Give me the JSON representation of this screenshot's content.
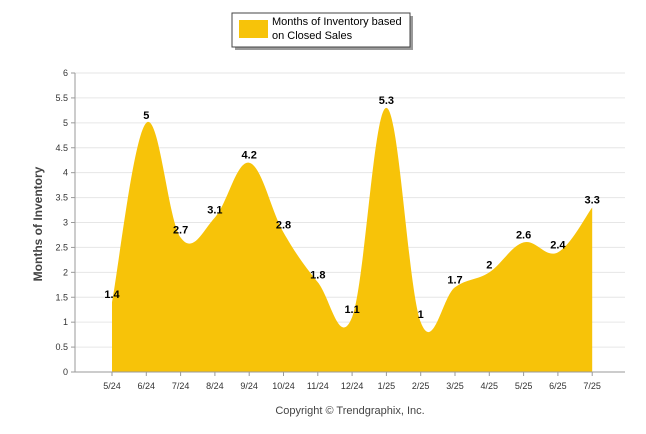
{
  "chart_data": {
    "type": "area",
    "legend": {
      "entries": [
        "Months of Inventory based",
        "on Closed Sales"
      ],
      "placement": "top-center"
    },
    "ylabel": "Months of Inventory",
    "xlabel": "",
    "title": "",
    "ylim": [
      0,
      6
    ],
    "y_ticks": [
      "0",
      "0.5",
      "1",
      "1.5",
      "2",
      "2.5",
      "3",
      "3.5",
      "4",
      "4.5",
      "5",
      "5.5",
      "6"
    ],
    "grid": true,
    "categories": [
      "5/24",
      "6/24",
      "7/24",
      "8/24",
      "9/24",
      "10/24",
      "11/24",
      "12/24",
      "1/25",
      "2/25",
      "3/25",
      "4/25",
      "5/25",
      "6/25",
      "7/25"
    ],
    "values": [
      1.4,
      5,
      2.7,
      3.1,
      4.2,
      2.8,
      1.8,
      1.1,
      5.3,
      1,
      1.7,
      2,
      2.6,
      2.4,
      3.3
    ],
    "data_labels": [
      "1.4",
      "5",
      "2.7",
      "3.1",
      "4.2",
      "2.8",
      "1.8",
      "1.1",
      "5.3",
      "1",
      "1.7",
      "2",
      "2.6",
      "2.4",
      "3.3"
    ],
    "series_color": "#f7c309",
    "footer": "Copyright © Trendgraphix, Inc."
  }
}
